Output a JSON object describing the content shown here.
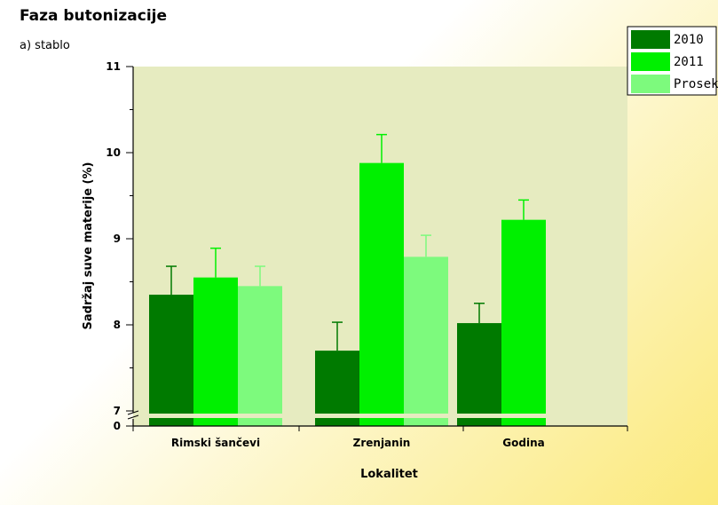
{
  "title": "Faza butonizacije",
  "subtitle": "a) stablo",
  "chart_data": {
    "type": "bar",
    "categories": [
      "Rimski šančevi",
      "Zrenjanin",
      "Godina"
    ],
    "series": [
      {
        "name": "2010",
        "values": [
          8.35,
          7.7,
          8.02
        ],
        "errors": [
          0.33,
          0.33,
          0.23
        ]
      },
      {
        "name": "2011",
        "values": [
          8.55,
          9.88,
          9.22
        ],
        "errors": [
          0.34,
          0.33,
          0.23
        ]
      },
      {
        "name": "Prosek",
        "values": [
          8.45,
          8.79,
          null
        ],
        "errors": [
          0.23,
          0.25,
          null
        ]
      }
    ],
    "colors": [
      "#007a00",
      "#00f000",
      "#7dfa7d"
    ],
    "xlabel": "Lokalitet",
    "ylabel": "Sadržaj suve materije (%)",
    "ylim": [
      7,
      11
    ],
    "axis_break": "0 to 7",
    "y_ticks": [
      "7",
      "8",
      "9",
      "10",
      "11"
    ],
    "y_zero_label": "0",
    "legend_position": "top-right",
    "plot_background": "#e6ebc0"
  }
}
